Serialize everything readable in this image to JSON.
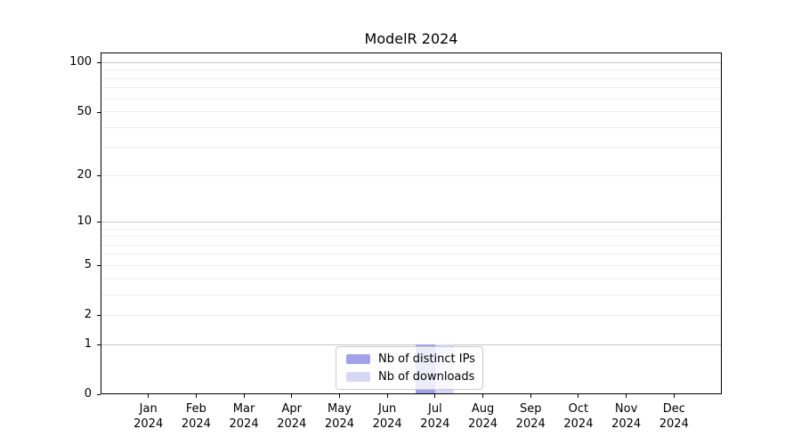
{
  "chart_data": {
    "type": "bar",
    "title": "ModelR 2024",
    "categories": [
      "Jan 2024",
      "Feb 2024",
      "Mar 2024",
      "Apr 2024",
      "May 2024",
      "Jun 2024",
      "Jul 2024",
      "Aug 2024",
      "Sep 2024",
      "Oct 2024",
      "Nov 2024",
      "Dec 2024"
    ],
    "series": [
      {
        "name": "Nb of distinct IPs",
        "color": "#a2a2ea",
        "values": [
          0,
          0,
          0,
          0,
          0,
          0,
          1,
          0,
          0,
          0,
          0,
          0
        ]
      },
      {
        "name": "Nb of downloads",
        "color": "#d8d8f5",
        "values": [
          0,
          0,
          0,
          0,
          0,
          0,
          1,
          0,
          0,
          0,
          0,
          0
        ]
      }
    ],
    "xlabel": "",
    "ylabel": "",
    "y_axis": {
      "scale": "log1p",
      "ticks": [
        0,
        1,
        2,
        5,
        10,
        20,
        50,
        100
      ],
      "max": 114.6
    },
    "xlim": [
      -1,
      12
    ],
    "bar_width": 0.4,
    "grid": {
      "on": true,
      "major_values": [
        1,
        10,
        100
      ],
      "minor_values": [
        2,
        3,
        4,
        5,
        6,
        7,
        8,
        9,
        20,
        30,
        40,
        50,
        60,
        70,
        80,
        90
      ]
    },
    "legend": {
      "position": "lower center",
      "entries": [
        "Nb of distinct IPs",
        "Nb of downloads"
      ]
    },
    "colors": {
      "grid_major": "#c7c7c7",
      "grid_minor": "#ededed",
      "spine": "#000000",
      "background": "#ffffff"
    }
  }
}
